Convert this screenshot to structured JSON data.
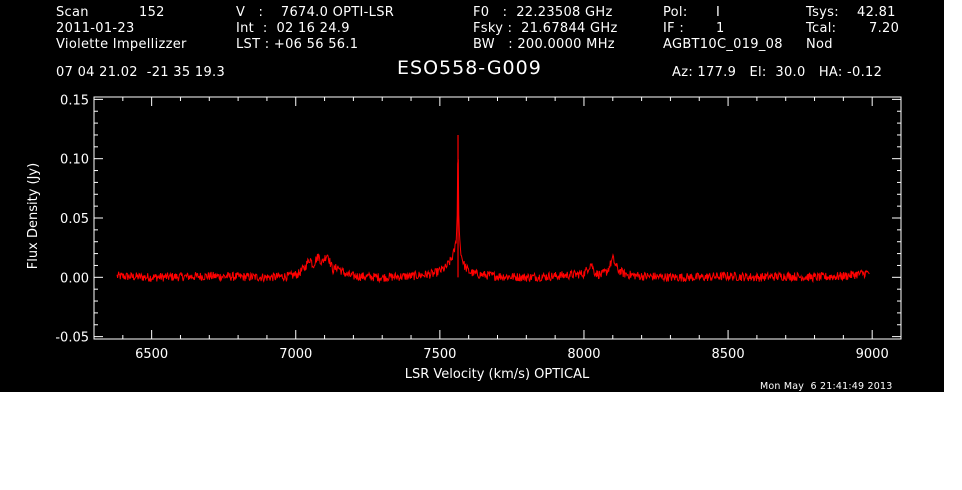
{
  "header": {
    "scan_label": "Scan",
    "scan_value": "152",
    "date": "2011-01-23",
    "observer": "Violette Impellizzer",
    "ra_dec": "07 04 21.02  -21 35 19.3",
    "v_line": "V   :    7674.0 OPTI-LSR",
    "int_line": "Int  :  02 16 24.9",
    "lst_line": "LST : +06 56 56.1",
    "f0_line": "F0   :  22.23508 GHz",
    "fsky_line": "Fsky :  21.67844 GHz",
    "bw_line": "BW   : 200.0000 MHz",
    "pol_label": "Pol:",
    "pol_value": "I",
    "if_label": "IF :",
    "if_value": "1",
    "project": "AGBT10C_019_08",
    "mode": "Nod",
    "tsys_label": "Tsys:",
    "tsys_value": "42.81",
    "tcal_label": "Tcal:",
    "tcal_value": "7.20",
    "source": "ESO558-G009",
    "az_el_ha": "Az: 177.9   El:  30.0   HA: -0.12",
    "timestamp": "Mon May  6 21:41:49 2013"
  },
  "colors": {
    "background": "#000000",
    "foreground": "#ffffff",
    "trace": "#ff0000"
  },
  "chart_data": {
    "type": "line",
    "title": "ESO558-G009",
    "xlabel": "LSR Velocity (km/s) OPTICAL",
    "ylabel": "Flux Density (Jy)",
    "xlim": [
      6300,
      9100
    ],
    "ylim": [
      -0.052,
      0.152
    ],
    "x_ticks": [
      6500,
      7000,
      7500,
      8000,
      8500,
      9000
    ],
    "x_tick_labels": [
      "6500",
      "7000",
      "7500",
      "8000",
      "8500",
      "9000"
    ],
    "y_ticks": [
      -0.05,
      0.0,
      0.05,
      0.1,
      0.15
    ],
    "y_tick_labels": [
      "-0.05",
      "0.00",
      "0.05",
      "0.10",
      "0.15"
    ],
    "grid": false,
    "series": [
      {
        "color": "#ff0000",
        "x": [
          6380,
          6500,
          6700,
          6900,
          6980,
          7010,
          7030,
          7040,
          7050,
          7060,
          7070,
          7080,
          7090,
          7100,
          7110,
          7120,
          7130,
          7145,
          7160,
          7180,
          7200,
          7300,
          7400,
          7480,
          7520,
          7540,
          7550,
          7556,
          7560,
          7563,
          7566,
          7570,
          7575,
          7585,
          7600,
          7620,
          7650,
          7700,
          7800,
          7900,
          8000,
          8015,
          8025,
          8035,
          8045,
          8060,
          8080,
          8090,
          8100,
          8110,
          8120,
          8140,
          8160,
          8200,
          8300,
          8400,
          8500,
          8600,
          8700,
          8800,
          8900,
          8990
        ],
        "y": [
          0.001,
          0.0,
          0.001,
          0.0,
          0.001,
          0.003,
          0.008,
          0.012,
          0.016,
          0.01,
          0.015,
          0.018,
          0.012,
          0.016,
          0.02,
          0.012,
          0.006,
          0.009,
          0.005,
          0.002,
          0.001,
          0.0,
          0.001,
          0.003,
          0.008,
          0.015,
          0.022,
          0.03,
          0.05,
          0.12,
          0.045,
          0.028,
          0.018,
          0.01,
          0.005,
          0.003,
          0.002,
          0.001,
          0.0,
          0.001,
          0.003,
          0.008,
          0.012,
          0.005,
          0.003,
          0.002,
          0.005,
          0.01,
          0.016,
          0.01,
          0.006,
          0.003,
          0.002,
          0.001,
          0.0,
          0.0,
          0.001,
          0.0,
          0.001,
          0.0,
          0.001,
          0.004
        ]
      }
    ]
  }
}
